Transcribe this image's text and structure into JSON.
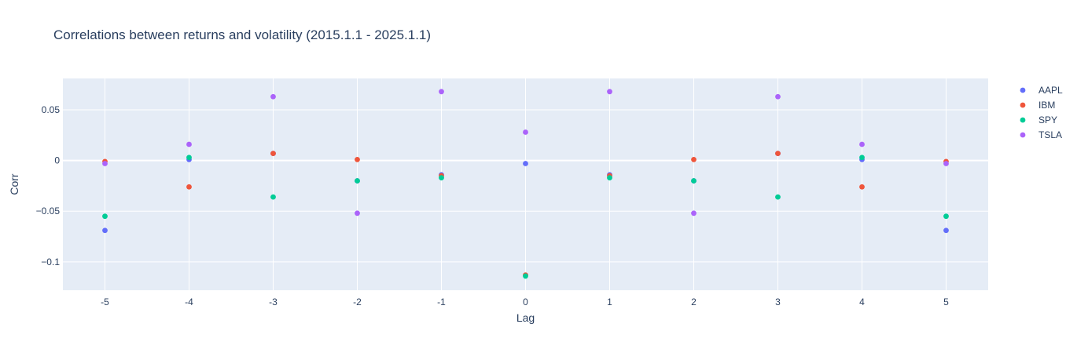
{
  "chart_data": {
    "type": "scatter",
    "title": "Correlations between returns and volatility (2015.1.1 - 2025.1.1)",
    "xlabel": "Lag",
    "ylabel": "Corr",
    "x": [
      -5,
      -4,
      -3,
      -2,
      -1,
      0,
      1,
      2,
      3,
      4,
      5
    ],
    "xlim": [
      -5.5,
      5.5
    ],
    "ylim": [
      -0.128,
      0.081
    ],
    "y_ticks": [
      -0.1,
      -0.05,
      0,
      0.05
    ],
    "y_tick_labels": [
      "−0.1",
      "−0.05",
      "0",
      "0.05"
    ],
    "x_tick_labels": [
      "-5",
      "-4",
      "-3",
      "-2",
      "-1",
      "0",
      "1",
      "2",
      "3",
      "4",
      "5"
    ],
    "grid": true,
    "legend_position": "top-right",
    "series": [
      {
        "name": "AAPL",
        "color": "#636efa",
        "values": [
          -0.069,
          0.001,
          0.007,
          -0.02,
          -0.014,
          -0.003,
          -0.014,
          -0.02,
          0.007,
          0.001,
          -0.069
        ]
      },
      {
        "name": "IBM",
        "color": "#ef553b",
        "values": [
          -0.001,
          -0.026,
          0.007,
          0.001,
          -0.015,
          -0.113,
          -0.015,
          0.001,
          0.007,
          -0.026,
          -0.001
        ]
      },
      {
        "name": "SPY",
        "color": "#00cc96",
        "values": [
          -0.055,
          0.003,
          -0.036,
          -0.02,
          -0.017,
          -0.114,
          -0.017,
          -0.02,
          -0.036,
          0.003,
          -0.055
        ]
      },
      {
        "name": "TSLA",
        "color": "#ab63fa",
        "values": [
          -0.003,
          0.016,
          0.063,
          -0.052,
          0.068,
          0.028,
          0.068,
          -0.052,
          0.063,
          0.016,
          -0.003
        ]
      }
    ]
  }
}
